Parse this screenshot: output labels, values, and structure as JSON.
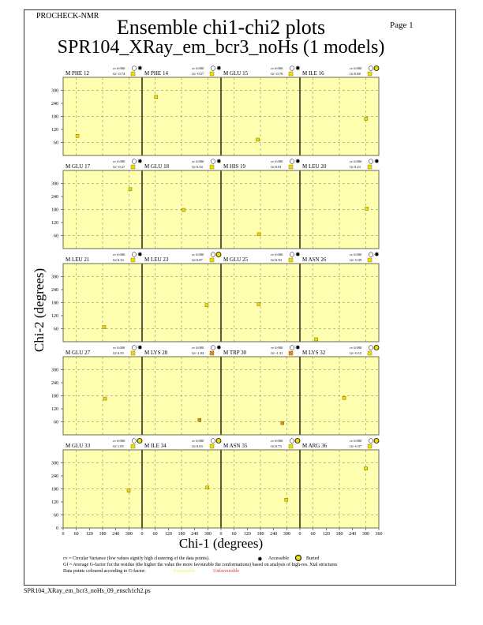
{
  "header": {
    "program": "PROCHECK-NMR",
    "page_label": "Page  1",
    "title": "Ensemble chi1-chi2 plots",
    "subtitle": "SPR104_XRay_em_bcr3_noHs (1 models)"
  },
  "footer": {
    "filename": "SPR104_XRay_em_bcr3_noHs_09_ensch1ch2.ps"
  },
  "legend": {
    "cv_text": "cv = Circular Variance (low values signify high clustering of the data points).",
    "accessible_label": "Accessible",
    "buried_label": "Buried",
    "gf_text": "Gf = Average G-factor for the residue (the higher the value the more favourable the conformations) based on analysis of high-res. Xtal structures",
    "colour_text": "Data points coloured according to G-factor:",
    "favourable_label": "Favourable",
    "unfavourable_label": "Unfavourable",
    "favourable_color": "#ffff66",
    "unfavourable_color": "#e03030"
  },
  "colors": {
    "panel_bg": "#ffffb0",
    "point_yellow": "#e8e000",
    "point_orange": "#e08a20"
  },
  "chart_data": {
    "type": "scatter",
    "xlabel": "Chi-1 (degrees)",
    "ylabel": "Chi-2 (degrees)",
    "xlim": [
      0,
      360
    ],
    "ylim": [
      0,
      360
    ],
    "x_ticks": [
      0,
      60,
      120,
      180,
      240,
      300,
      360
    ],
    "y_ticks": [
      0,
      60,
      120,
      180,
      240,
      300
    ],
    "grid": true,
    "grid_lines": [
      60,
      180,
      300
    ],
    "panels": [
      {
        "residue": "M PHE 12",
        "cv": "cv 0.000",
        "gf": "Gf -0.74",
        "access": "accessible",
        "color": "yellow",
        "points": [
          [
            65,
            90
          ]
        ]
      },
      {
        "residue": "M PHE 14",
        "cv": "cv 0.000",
        "gf": "Gf -0.57",
        "access": "accessible",
        "color": "yellow",
        "points": [
          [
            64,
            270
          ]
        ]
      },
      {
        "residue": "M GLU 15",
        "cv": "cv 0.000",
        "gf": "Gf -0.70",
        "access": "accessible",
        "color": "yellow",
        "points": [
          [
            168,
            73
          ]
        ]
      },
      {
        "residue": "M ILE 16",
        "cv": "cv 0.000",
        "gf": "Gf 0.88",
        "access": "buried",
        "color": "yellow",
        "points": [
          [
            302,
            169
          ]
        ]
      },
      {
        "residue": "M GLU 17",
        "cv": "cv 0.000",
        "gf": "Gf -0.27",
        "access": "accessible",
        "color": "yellow",
        "points": [
          [
            306,
            274
          ]
        ]
      },
      {
        "residue": "M GLU 18",
        "cv": "cv 0.000",
        "gf": "Gf 0.54",
        "access": "accessible",
        "color": "yellow",
        "points": [
          [
            190,
            178
          ]
        ]
      },
      {
        "residue": "M HIS 19",
        "cv": "cv 0.000",
        "gf": "Gf 0.81",
        "access": "accessible",
        "color": "yellow",
        "points": [
          [
            173,
            66
          ]
        ]
      },
      {
        "residue": "M LEU 20",
        "cv": "cv 0.000",
        "gf": "Gf 0.23",
        "access": "accessible",
        "color": "yellow",
        "points": [
          [
            305,
            184
          ]
        ]
      },
      {
        "residue": "M LEU 21",
        "cv": "cv 0.000",
        "gf": "Gf 0.33",
        "access": "accessible",
        "color": "yellow",
        "points": [
          [
            187,
            67
          ]
        ]
      },
      {
        "residue": "M LEU 23",
        "cv": "cv 0.000",
        "gf": "Gf 0.87",
        "access": "buried",
        "color": "yellow",
        "points": [
          [
            295,
            168
          ]
        ]
      },
      {
        "residue": "M GLU 25",
        "cv": "cv 0.000",
        "gf": "Gf 0.50",
        "access": "accessible",
        "color": "yellow",
        "points": [
          [
            172,
            173
          ]
        ]
      },
      {
        "residue": "M ASN 26",
        "cv": "cv 0.000",
        "gf": "Gf -0.39",
        "access": "accessible",
        "color": "yellow",
        "points": [
          [
            74,
            11
          ]
        ]
      },
      {
        "residue": "M GLU 27",
        "cv": "cv 0.000",
        "gf": "Gf 0.55",
        "access": "accessible",
        "color": "yellow",
        "points": [
          [
            191,
            167
          ]
        ]
      },
      {
        "residue": "M LYS 28",
        "cv": "cv 0.000",
        "gf": "Gf -1.04",
        "access": "accessible",
        "color": "orange",
        "points": [
          [
            262,
            68
          ]
        ]
      },
      {
        "residue": "M TRP 30",
        "cv": "cv 0.000",
        "gf": "Gf -1.31",
        "access": "accessible",
        "color": "orange",
        "points": [
          [
            280,
            54
          ]
        ]
      },
      {
        "residue": "M LYS 32",
        "cv": "cv 0.000",
        "gf": "Gf -0.15",
        "access": "buried",
        "color": "yellow",
        "points": [
          [
            202,
            170
          ]
        ]
      },
      {
        "residue": "M GLU 33",
        "cv": "cv 0.000",
        "gf": "Gf 1.05",
        "access": "buried",
        "color": "yellow",
        "points": [
          [
            299,
            172
          ]
        ]
      },
      {
        "residue": "M ILE 34",
        "cv": "cv 0.000",
        "gf": "Gf 0.03",
        "access": "buried",
        "color": "yellow",
        "points": [
          [
            298,
            186
          ]
        ]
      },
      {
        "residue": "M ASN 35",
        "cv": "cv 0.000",
        "gf": "Gf 0.73",
        "access": "buried",
        "color": "yellow",
        "points": [
          [
            298,
            130
          ]
        ]
      },
      {
        "residue": "M ARG 36",
        "cv": "cv 0.000",
        "gf": "Gf -0.37",
        "access": "buried",
        "color": "yellow",
        "points": [
          [
            301,
            274
          ]
        ]
      }
    ]
  }
}
